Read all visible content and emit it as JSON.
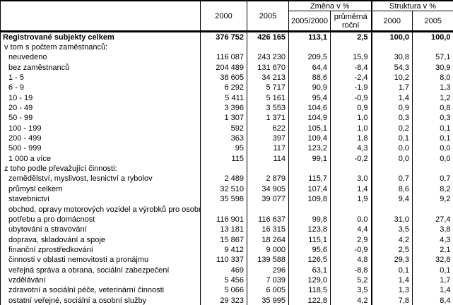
{
  "header": {
    "label_col": "",
    "col_2000": "2000",
    "col_2005": "2005",
    "group_change": "Změna v %",
    "group_structure": "Struktura v %",
    "sub_change_ratio": "2005/2000",
    "sub_change_avg": "průměrná roční",
    "sub_struct_2000": "2000",
    "sub_struct_2005": "2005"
  },
  "rows": [
    {
      "label": "Registrované subjekty celkem",
      "indent": 0,
      "bold": true,
      "values": [
        "376 752",
        "426 165",
        "113,1",
        "2,5",
        "100,0",
        "100,0"
      ]
    },
    {
      "label": "v tom s počtem zaměstnanců:",
      "indent": 1,
      "bold": false,
      "values": []
    },
    {
      "label": "neuvedeno",
      "indent": 2,
      "bold": false,
      "values": [
        "116 087",
        "243 230",
        "209,5",
        "15,9",
        "30,8",
        "57,1"
      ]
    },
    {
      "label": "bez zaměstnanců",
      "indent": 2,
      "bold": false,
      "values": [
        "204 489",
        "131 670",
        "64,4",
        "-8,4",
        "54,3",
        "30,9"
      ]
    },
    {
      "label": "1 - 5",
      "indent": 2,
      "bold": false,
      "values": [
        "38 605",
        "34 213",
        "88,6",
        "-2,4",
        "10,2",
        "8,0"
      ]
    },
    {
      "label": "6 - 9",
      "indent": 2,
      "bold": false,
      "values": [
        "6 292",
        "5 717",
        "90,9",
        "-1,9",
        "1,7",
        "1,3"
      ]
    },
    {
      "label": "10 - 19",
      "indent": 2,
      "bold": false,
      "values": [
        "5 411",
        "5 161",
        "95,4",
        "-0,9",
        "1,4",
        "1,2"
      ]
    },
    {
      "label": "20 - 49",
      "indent": 2,
      "bold": false,
      "values": [
        "3 396",
        "3 553",
        "104,6",
        "0,9",
        "0,9",
        "0,8"
      ]
    },
    {
      "label": "50 - 99",
      "indent": 2,
      "bold": false,
      "values": [
        "1 307",
        "1 371",
        "104,9",
        "1,0",
        "0,3",
        "0,3"
      ]
    },
    {
      "label": "100 - 199",
      "indent": 2,
      "bold": false,
      "values": [
        "592",
        "622",
        "105,1",
        "1,0",
        "0,2",
        "0,1"
      ]
    },
    {
      "label": "200 - 499",
      "indent": 2,
      "bold": false,
      "values": [
        "363",
        "397",
        "109,4",
        "1,8",
        "0,1",
        "0,1"
      ]
    },
    {
      "label": "500 - 999",
      "indent": 2,
      "bold": false,
      "values": [
        "95",
        "117",
        "123,2",
        "4,3",
        "0,0",
        "0,0"
      ]
    },
    {
      "label": "1 000 a více",
      "indent": 2,
      "bold": false,
      "values": [
        "115",
        "114",
        "99,1",
        "-0,2",
        "0,0",
        "0,0"
      ]
    },
    {
      "label": "z toho podle převažující činnosti:",
      "indent": 1,
      "bold": false,
      "values": []
    },
    {
      "label": "zemědělství, myslivost, lesnictví a rybolov",
      "indent": 2,
      "bold": false,
      "values": [
        "2 489",
        "2 879",
        "115,7",
        "3,0",
        "0,7",
        "0,7"
      ]
    },
    {
      "label": "průmysl celkem",
      "indent": 2,
      "bold": false,
      "values": [
        "32 510",
        "34 905",
        "107,4",
        "1,4",
        "8,6",
        "8,2"
      ]
    },
    {
      "label": "stavebnictví",
      "indent": 2,
      "bold": false,
      "values": [
        "35 598",
        "39 077",
        "109,8",
        "1,9",
        "9,4",
        "9,2"
      ]
    },
    {
      "label": "obchod, opravy motorových vozidel a výrobků pro osobní",
      "indent": 2,
      "bold": false,
      "values": []
    },
    {
      "label": "potřebu a pro domácnost",
      "indent": 2,
      "bold": false,
      "values": [
        "116 901",
        "116 637",
        "99,8",
        "0,0",
        "31,0",
        "27,4"
      ]
    },
    {
      "label": "ubytování a stravování",
      "indent": 2,
      "bold": false,
      "values": [
        "13 181",
        "16 315",
        "123,8",
        "4,4",
        "3,5",
        "3,8"
      ]
    },
    {
      "label": "doprava, skladování a spoje",
      "indent": 2,
      "bold": false,
      "values": [
        "15 867",
        "18 264",
        "115,1",
        "2,9",
        "4,2",
        "4,3"
      ]
    },
    {
      "label": "finanční zprostředkování",
      "indent": 2,
      "bold": false,
      "values": [
        "9 412",
        "9 000",
        "95,6",
        "-0,9",
        "2,5",
        "2,1"
      ]
    },
    {
      "label": "činnosti v oblasti nemovitostí a pronájmu",
      "indent": 2,
      "bold": false,
      "values": [
        "110 337",
        "139 588",
        "126,5",
        "4,8",
        "29,3",
        "32,8"
      ]
    },
    {
      "label": "veřejná správa a obrana, sociální zabezpečení",
      "indent": 2,
      "bold": false,
      "values": [
        "469",
        "296",
        "63,1",
        "-8,8",
        "0,1",
        "0,1"
      ]
    },
    {
      "label": "vzdělávání",
      "indent": 2,
      "bold": false,
      "values": [
        "5 456",
        "7 039",
        "129,0",
        "5,2",
        "1,4",
        "1,7"
      ]
    },
    {
      "label": "zdravotní a sociální péče, veterinární činnosti",
      "indent": 2,
      "bold": false,
      "values": [
        "5 066",
        "6 005",
        "118,5",
        "3,5",
        "1,3",
        "1,4"
      ]
    },
    {
      "label": "ostatní veřejné, sociální a osobní služby",
      "indent": 2,
      "bold": false,
      "values": [
        "29 323",
        "35 995",
        "122,8",
        "4,2",
        "7,8",
        "8,4"
      ]
    }
  ]
}
